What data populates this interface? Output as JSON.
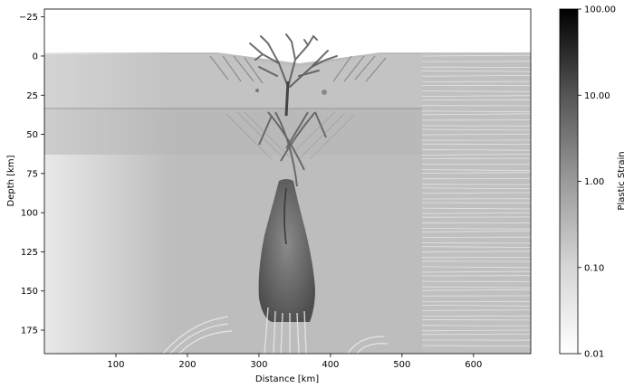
{
  "chart_data": {
    "type": "heatmap",
    "title": "",
    "xlabel": "Distance [km]",
    "ylabel": "Depth [km]",
    "xlim": [
      0,
      680
    ],
    "ylim": [
      190,
      -30
    ],
    "x_axis": {
      "ticks": [
        100,
        200,
        300,
        400,
        500,
        600
      ],
      "tick_labels": [
        "100",
        "200",
        "300",
        "400",
        "500",
        "600"
      ]
    },
    "y_axis": {
      "ticks": [
        -25,
        0,
        25,
        50,
        75,
        100,
        125,
        150,
        175
      ],
      "tick_labels": [
        "−25",
        "0",
        "25",
        "50",
        "75",
        "100",
        "125",
        "150",
        "175"
      ],
      "inverted": true
    },
    "colorbar": {
      "label": "Plastic Strain",
      "scale": "log",
      "range": [
        0.01,
        100
      ],
      "ticks": [
        0.01,
        0.1,
        1,
        10,
        100
      ],
      "tick_labels": [
        "0.01",
        "0.10",
        "1.00",
        "10.00",
        "100.00"
      ],
      "colormap": "Greys"
    },
    "features": {
      "surface_depth_km": 0,
      "crust_boundary_depth_km": 33,
      "upper_layer_lower_boundary_km": 62,
      "layered_region_x_start_km": 530,
      "shear_zone_center_km": 340,
      "plume_head_depth_range_km": [
        80,
        170
      ],
      "plume_center_km": 340
    },
    "colors": {
      "background_field": "#bcbcbc",
      "air": "#ffffff",
      "high_strain": "#3a3a3a"
    }
  }
}
